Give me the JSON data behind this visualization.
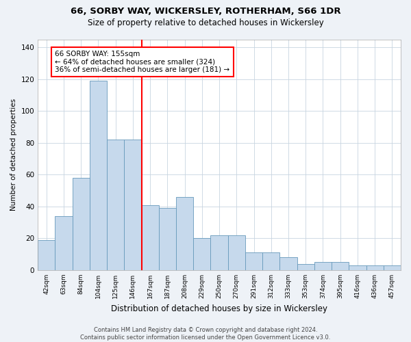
{
  "title1": "66, SORBY WAY, WICKERSLEY, ROTHERHAM, S66 1DR",
  "title2": "Size of property relative to detached houses in Wickersley",
  "xlabel": "Distribution of detached houses by size in Wickersley",
  "ylabel": "Number of detached properties",
  "bin_labels": [
    "42sqm",
    "63sqm",
    "84sqm",
    "104sqm",
    "125sqm",
    "146sqm",
    "167sqm",
    "187sqm",
    "208sqm",
    "229sqm",
    "250sqm",
    "270sqm",
    "291sqm",
    "312sqm",
    "333sqm",
    "353sqm",
    "374sqm",
    "395sqm",
    "416sqm",
    "436sqm",
    "457sqm"
  ],
  "bar_heights": [
    19,
    34,
    58,
    119,
    82,
    82,
    41,
    39,
    46,
    20,
    22,
    22,
    11,
    11,
    8,
    4,
    5,
    5,
    3,
    3,
    3
  ],
  "bar_color": "#c6d9ec",
  "bar_edge_color": "#6699bb",
  "vline_index": 6,
  "vline_color": "red",
  "annotation_text": "66 SORBY WAY: 155sqm\n← 64% of detached houses are smaller (324)\n36% of semi-detached houses are larger (181) →",
  "annotation_box_color": "white",
  "annotation_box_edge": "red",
  "ylim": [
    0,
    145
  ],
  "yticks": [
    0,
    20,
    40,
    60,
    80,
    100,
    120,
    140
  ],
  "footer1": "Contains HM Land Registry data © Crown copyright and database right 2024.",
  "footer2": "Contains public sector information licensed under the Open Government Licence v3.0.",
  "background_color": "#eef2f7",
  "plot_bg_color": "#ffffff",
  "grid_color": "#c8d4e0"
}
